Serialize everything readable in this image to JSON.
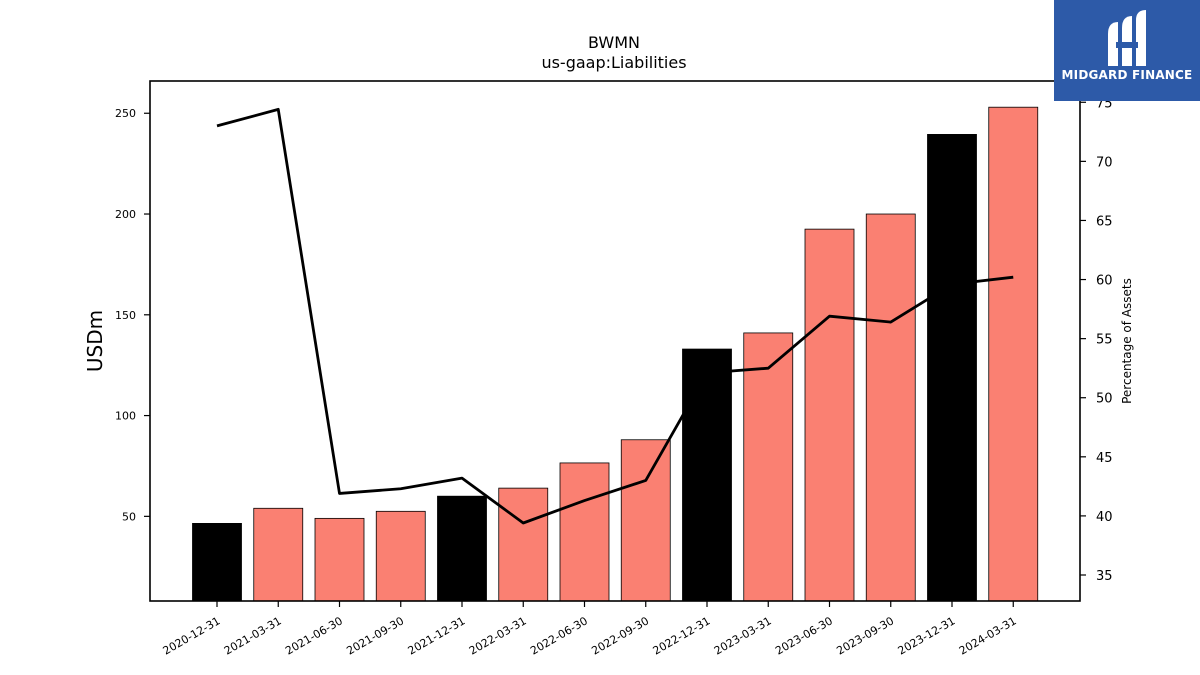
{
  "chart_data": {
    "type": "bar+line",
    "title": "BWMN",
    "subtitle": "us-gaap:Liabilities",
    "ylabel": "USDm",
    "y2label": "Percentage of Assets",
    "categories": [
      "2020-12-31",
      "2021-03-31",
      "2021-06-30",
      "2021-09-30",
      "2021-12-31",
      "2022-03-31",
      "2022-06-30",
      "2022-09-30",
      "2022-12-31",
      "2023-03-31",
      "2023-06-30",
      "2023-09-30",
      "2023-12-31",
      "2024-03-31"
    ],
    "bar_series": {
      "values": [
        46.5,
        54,
        49,
        52.5,
        60,
        64,
        76.5,
        88,
        133,
        141,
        192.5,
        200,
        239.5,
        253
      ],
      "colors": [
        "#000000",
        "#fa8072",
        "#fa8072",
        "#fa8072",
        "#000000",
        "#fa8072",
        "#fa8072",
        "#fa8072",
        "#000000",
        "#fa8072",
        "#fa8072",
        "#fa8072",
        "#000000",
        "#fa8072"
      ]
    },
    "line_series": {
      "values": [
        73.0,
        74.4,
        41.9,
        42.3,
        43.2,
        39.4,
        41.3,
        43.0,
        52.1,
        52.5,
        56.9,
        56.4,
        59.6,
        60.2
      ],
      "color": "#000000"
    },
    "ylim": [
      8,
      266
    ],
    "y2lim": [
      32.8,
      76.8
    ],
    "yticks": [
      50,
      100,
      150,
      200,
      250
    ],
    "y2ticks": [
      35,
      40,
      45,
      50,
      55,
      60,
      65,
      70,
      75
    ],
    "grid": false,
    "legend": "none"
  },
  "logo": {
    "text": "MIDGARD FINANCE",
    "background": "#2d5aa8"
  }
}
